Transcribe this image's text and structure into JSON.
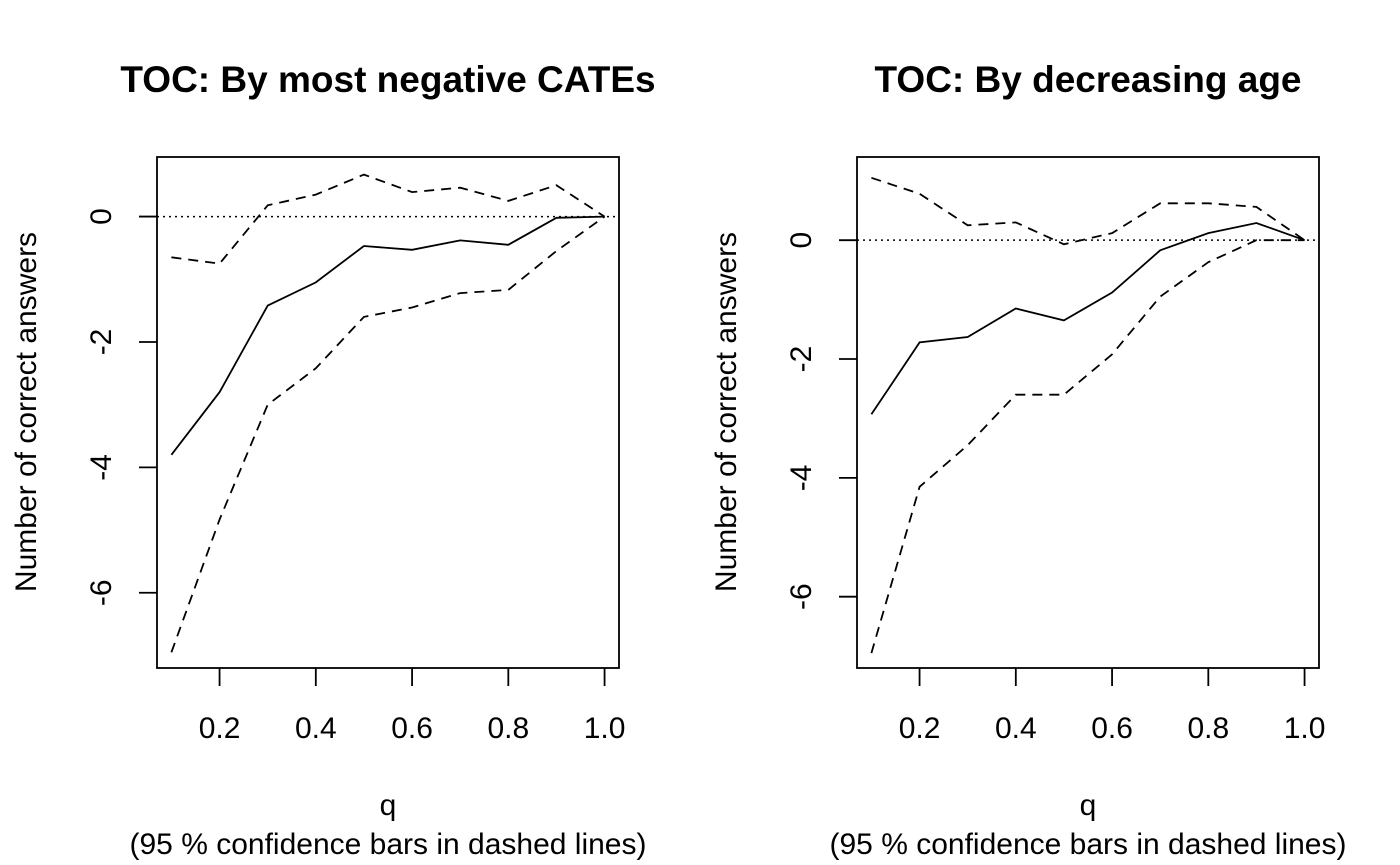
{
  "chart_data": [
    {
      "type": "line",
      "title": "TOC: By most negative CATEs",
      "xlabel": "q",
      "sublabel": "(95 % confidence bars in dashed lines)",
      "ylabel": "Number of correct answers",
      "xlim": [
        0.07,
        1.03
      ],
      "ylim": [
        -7.2,
        0.95
      ],
      "x_ticks": [
        0.2,
        0.4,
        0.6,
        0.8,
        1.0
      ],
      "x_tick_labels": [
        "0.2",
        "0.4",
        "0.6",
        "0.8",
        "1.0"
      ],
      "y_ticks": [
        -6,
        -4,
        -2,
        0
      ],
      "y_tick_labels": [
        "-6",
        "-4",
        "-2",
        "0"
      ],
      "reference_line": 0,
      "x": [
        0.1,
        0.2,
        0.3,
        0.4,
        0.5,
        0.6,
        0.7,
        0.8,
        0.9,
        1.0
      ],
      "series": [
        {
          "style": "solid",
          "values": [
            -3.8,
            -2.8,
            -1.42,
            -1.05,
            -0.47,
            -0.53,
            -0.38,
            -0.45,
            -0.02,
            0.0
          ]
        },
        {
          "style": "dashed",
          "values": [
            -0.65,
            -0.75,
            0.18,
            0.35,
            0.67,
            0.39,
            0.46,
            0.25,
            0.5,
            0.0
          ]
        },
        {
          "style": "dashed",
          "values": [
            -6.95,
            -4.83,
            -3.0,
            -2.42,
            -1.6,
            -1.45,
            -1.22,
            -1.17,
            -0.55,
            0.0
          ]
        }
      ]
    },
    {
      "type": "line",
      "title": "TOC: By decreasing age",
      "xlabel": "q",
      "sublabel": "(95 % confidence bars in dashed lines)",
      "ylabel": "Number of correct answers",
      "xlim": [
        0.07,
        1.03
      ],
      "ylim": [
        -7.2,
        1.4
      ],
      "x_ticks": [
        0.2,
        0.4,
        0.6,
        0.8,
        1.0
      ],
      "x_tick_labels": [
        "0.2",
        "0.4",
        "0.6",
        "0.8",
        "1.0"
      ],
      "y_ticks": [
        -6,
        -4,
        -2,
        0
      ],
      "y_tick_labels": [
        "-6",
        "-4",
        "-2",
        "0"
      ],
      "reference_line": 0,
      "x": [
        0.1,
        0.2,
        0.3,
        0.4,
        0.5,
        0.6,
        0.7,
        0.8,
        0.9,
        1.0
      ],
      "series": [
        {
          "style": "solid",
          "values": [
            -2.93,
            -1.72,
            -1.63,
            -1.15,
            -1.35,
            -0.88,
            -0.17,
            0.12,
            0.29,
            0.0
          ]
        },
        {
          "style": "dashed",
          "values": [
            1.05,
            0.78,
            0.25,
            0.3,
            -0.07,
            0.12,
            0.62,
            0.62,
            0.56,
            0.0
          ]
        },
        {
          "style": "dashed",
          "values": [
            -6.95,
            -4.15,
            -3.45,
            -2.6,
            -2.6,
            -1.92,
            -0.95,
            -0.37,
            0.0,
            0.0
          ]
        }
      ]
    }
  ]
}
